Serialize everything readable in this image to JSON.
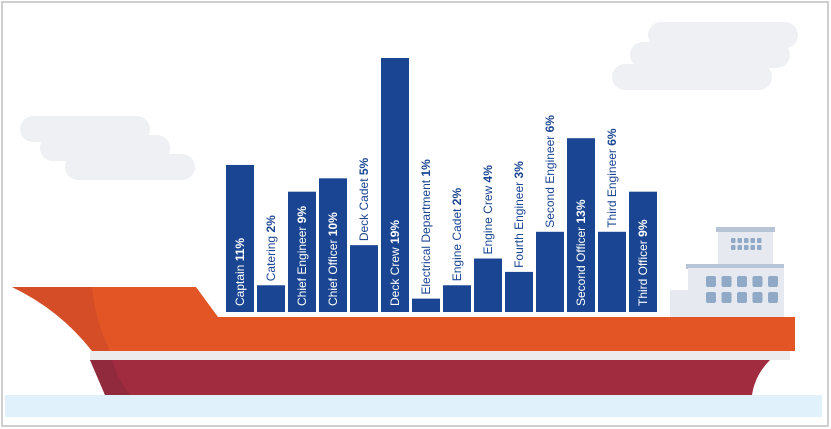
{
  "chart_data": {
    "type": "bar",
    "categories": [
      "Captain",
      "Catering",
      "Chief Engineer",
      "Chief Officer",
      "Deck Cadet",
      "Deck Crew",
      "Electrical Department",
      "Engine Cadet",
      "Engine Crew",
      "Fourth Engineer",
      "Second Engineer",
      "Second Officer",
      "Third Engineer",
      "Third Officer"
    ],
    "values": [
      11,
      2,
      9,
      10,
      5,
      19,
      1,
      2,
      4,
      3,
      6,
      13,
      6,
      9
    ],
    "value_labels": [
      "11%",
      "2%",
      "9%",
      "10%",
      "5%",
      "19%",
      "1%",
      "2%",
      "4%",
      "3%",
      "6%",
      "13%",
      "6%",
      "9%"
    ],
    "title": "",
    "xlabel": "",
    "ylabel": "",
    "ylim": [
      0,
      19
    ],
    "grid": false,
    "bar_color": "#1a4592",
    "label_inside_color": "#ffffff",
    "label_outside_color": "#1a4592"
  },
  "illustration": {
    "theme": "cargo ship",
    "hull_orange": "#e45525",
    "hull_red": "#a12c40",
    "water": "#e0f1fb",
    "cloud": "#eef0f4",
    "cabin": "#e6e9ef",
    "window": "#8fa9c6"
  }
}
